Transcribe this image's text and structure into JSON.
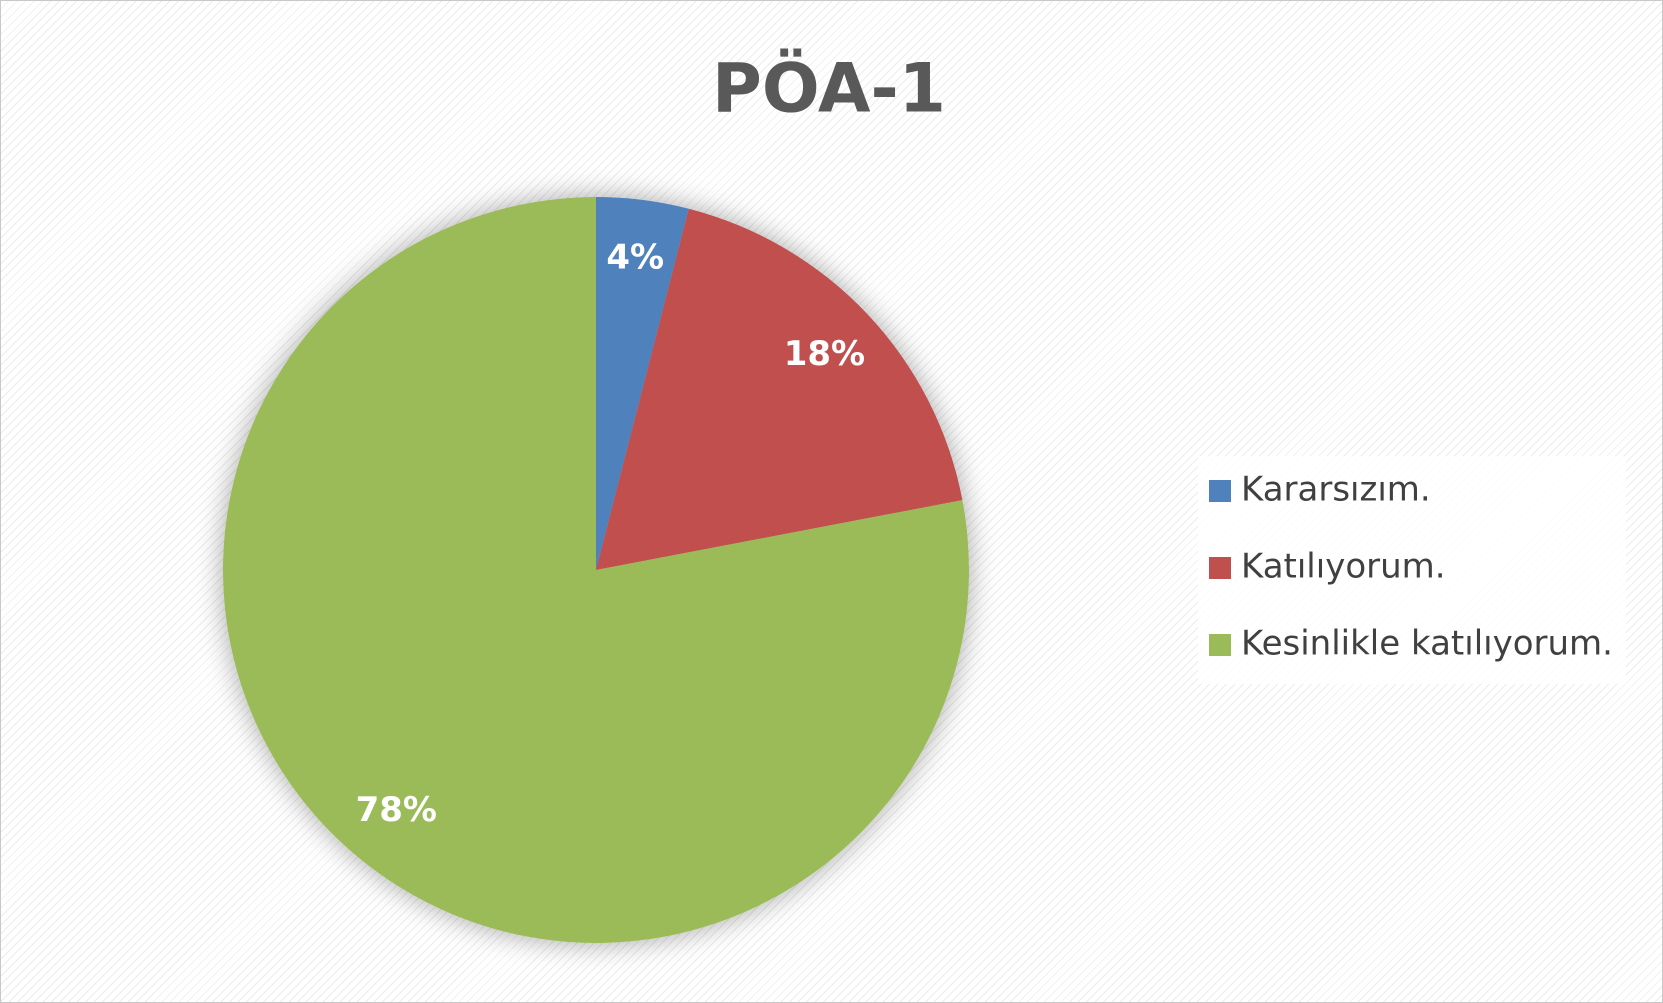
{
  "chart_data": {
    "type": "pie",
    "title": "PÖA-1",
    "categories": [
      "Kararsızım.",
      "Katılıyorum.",
      "Kesinlikle katılıyorum."
    ],
    "values": [
      4,
      18,
      78
    ],
    "value_labels": [
      "4%",
      "18%",
      "78%"
    ],
    "colors": [
      "#4f81bd",
      "#c0504d",
      "#9bbb59"
    ],
    "legend": "right"
  }
}
